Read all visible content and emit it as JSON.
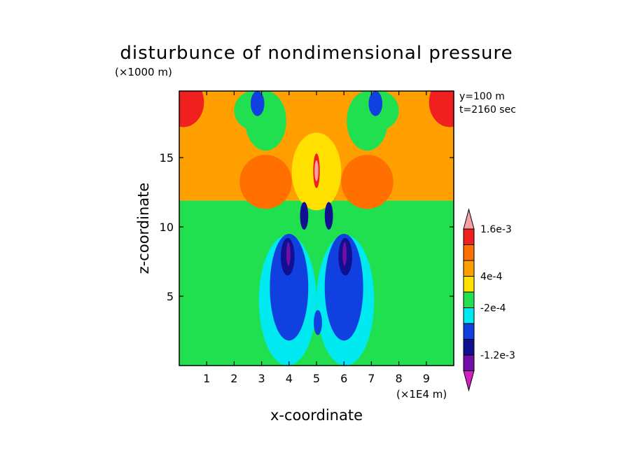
{
  "chart_data": {
    "type": "heatmap",
    "title": "disturbunce of nondimensional pressure",
    "xlabel": "x-coordinate",
    "ylabel": "z-coordinate",
    "x_unit_label": "(×1E4 m)",
    "y_unit_label": "(×1000 m)",
    "annotations": [
      "y=100 m",
      "t=2160 sec"
    ],
    "xlim": [
      0,
      10
    ],
    "ylim": [
      0,
      19.8
    ],
    "x_ticks": [
      1,
      2,
      3,
      4,
      5,
      6,
      7,
      8,
      9
    ],
    "x_tick_labels": [
      "1",
      "2",
      "3",
      "4",
      "5",
      "6",
      "7",
      "8",
      "9"
    ],
    "y_ticks": [
      5,
      10,
      15
    ],
    "y_tick_labels": [
      "5",
      "10",
      "15"
    ],
    "colorbar": {
      "levels": [
        -0.0016,
        -0.0012,
        -0.0008,
        -0.0004,
        -0.0002,
        0.0002,
        0.0004,
        0.0008,
        0.0012,
        0.0016
      ],
      "labeled_levels": [
        "1.6e-3",
        "4e-4",
        "-2e-4",
        "-1.2e-3"
      ],
      "labeled_level_values": [
        0.0016,
        0.0004,
        -0.0002,
        -0.0012
      ],
      "colors": [
        "#d020c0",
        "#7010a8",
        "#101090",
        "#1040e0",
        "#00e8f0",
        "#20e050",
        "#ffe000",
        "#ffa000",
        "#ff7000",
        "#f02020",
        "#f8a0a0"
      ]
    },
    "regions": [
      {
        "value": 0.0001,
        "shape": "rect",
        "x": [
          0,
          10
        ],
        "z": [
          0,
          11.9
        ],
        "desc": "near-zero background (lower)"
      },
      {
        "value": 0.0005,
        "shape": "rect",
        "x": [
          0,
          10
        ],
        "z": [
          11.9,
          19.8
        ],
        "desc": "upper layer"
      },
      {
        "value": 0.0003,
        "shape": "ellipse",
        "x": [
          4.1,
          5.9
        ],
        "z": [
          11.2,
          16.8
        ]
      },
      {
        "value": 0.0001,
        "shape": "ellipse",
        "x": [
          2.4,
          3.9
        ],
        "z": [
          15.5,
          19.8
        ]
      },
      {
        "value": 0.0001,
        "shape": "ellipse",
        "x": [
          6.1,
          7.6
        ],
        "z": [
          15.5,
          19.8
        ]
      },
      {
        "value": -0.0002,
        "shape": "ellipse",
        "x": [
          2.0,
          3.4
        ],
        "z": [
          17.0,
          19.8
        ]
      },
      {
        "value": -0.0002,
        "shape": "ellipse",
        "x": [
          6.6,
          8.0
        ],
        "z": [
          17.0,
          19.8
        ]
      },
      {
        "value": -0.0007,
        "shape": "ellipse",
        "x": [
          2.6,
          3.1
        ],
        "z": [
          18.0,
          19.8
        ]
      },
      {
        "value": -0.0007,
        "shape": "ellipse",
        "x": [
          6.9,
          7.4
        ],
        "z": [
          18.0,
          19.8
        ]
      },
      {
        "value": 0.001,
        "shape": "ellipse",
        "x": [
          2.2,
          4.1
        ],
        "z": [
          11.3,
          15.2
        ]
      },
      {
        "value": 0.001,
        "shape": "ellipse",
        "x": [
          5.9,
          7.8
        ],
        "z": [
          11.3,
          15.2
        ]
      },
      {
        "value": 0.0014,
        "shape": "ellipse",
        "x": [
          -0.6,
          0.9
        ],
        "z": [
          17.2,
          20.8
        ]
      },
      {
        "value": 0.0014,
        "shape": "ellipse",
        "x": [
          9.1,
          10.6
        ],
        "z": [
          17.2,
          20.8
        ]
      },
      {
        "value": -0.0003,
        "shape": "ellipse",
        "x": [
          2.9,
          5.0
        ],
        "z": [
          0,
          9.4
        ]
      },
      {
        "value": -0.0003,
        "shape": "ellipse",
        "x": [
          5.0,
          7.1
        ],
        "z": [
          0,
          9.4
        ]
      },
      {
        "value": -0.0006,
        "shape": "ellipse",
        "x": [
          3.3,
          4.7
        ],
        "z": [
          1.8,
          9.5
        ]
      },
      {
        "value": -0.0006,
        "shape": "ellipse",
        "x": [
          5.3,
          6.7
        ],
        "z": [
          1.8,
          9.5
        ]
      },
      {
        "value": -0.001,
        "shape": "ellipse",
        "x": [
          3.7,
          4.2
        ],
        "z": [
          6.5,
          9.2
        ]
      },
      {
        "value": -0.001,
        "shape": "ellipse",
        "x": [
          5.8,
          6.3
        ],
        "z": [
          6.5,
          9.2
        ]
      },
      {
        "value": -0.0014,
        "shape": "ellipse",
        "x": [
          3.9,
          4.05
        ],
        "z": [
          7.2,
          8.9
        ]
      },
      {
        "value": -0.0014,
        "shape": "ellipse",
        "x": [
          5.95,
          6.1
        ],
        "z": [
          7.2,
          8.9
        ]
      },
      {
        "value": -0.0006,
        "shape": "ellipse",
        "x": [
          4.9,
          5.2
        ],
        "z": [
          2.2,
          4.0
        ]
      },
      {
        "value": -0.001,
        "shape": "ellipse",
        "x": [
          4.4,
          4.7
        ],
        "z": [
          9.8,
          11.8
        ]
      },
      {
        "value": -0.001,
        "shape": "ellipse",
        "x": [
          5.3,
          5.6
        ],
        "z": [
          9.8,
          11.8
        ]
      },
      {
        "value": 0.0014,
        "shape": "ellipse",
        "x": [
          4.88,
          5.12
        ],
        "z": [
          12.8,
          15.3
        ]
      },
      {
        "value": 0.0018,
        "shape": "ellipse",
        "x": [
          4.93,
          5.07
        ],
        "z": [
          13.3,
          14.8
        ]
      }
    ]
  }
}
